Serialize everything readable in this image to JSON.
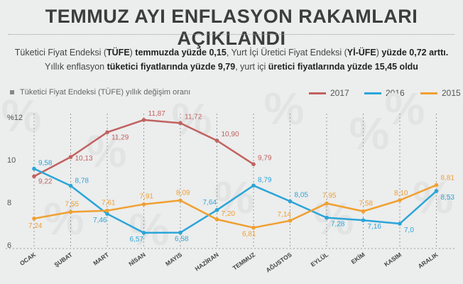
{
  "header": {
    "title": "TEMMUZ AYI ENFLASYON RAKAMLARI AÇIKLANDI"
  },
  "subtitle": {
    "line1": [
      {
        "t": "Tüketici Fiyat Endeksi (",
        "b": false
      },
      {
        "t": "TÜFE",
        "b": true
      },
      {
        "t": ") ",
        "b": false
      },
      {
        "t": "temmuzda yüzde 0,15",
        "b": true
      },
      {
        "t": ", Yurt İçi Üretici Fiyat Endeksi (",
        "b": false
      },
      {
        "t": "Yİ-ÜFE",
        "b": true
      },
      {
        "t": ") ",
        "b": false
      },
      {
        "t": "yüzde 0,72 arttı.",
        "b": true
      }
    ],
    "line2": [
      {
        "t": "Yıllık enflasyon ",
        "b": false
      },
      {
        "t": "tüketici fiyatlarında yüzde 9,79",
        "b": true
      },
      {
        "t": ", yurt içi ",
        "b": false
      },
      {
        "t": "üretici fiyatlarında yüzde 15,45 oldu",
        "b": true
      }
    ]
  },
  "chart_data": {
    "type": "line",
    "title": "Tüketici Fiyat Endeksi (TÜFE) yıllık değişim oranı",
    "y_unit": "%",
    "ylim": [
      6,
      12
    ],
    "yticks": [
      6,
      8,
      10,
      12
    ],
    "ytick_labels": [
      "6",
      "8",
      "10",
      "%12"
    ],
    "grid": "vertical-dotted",
    "legend_position": "top-right",
    "categories": [
      "OCAK",
      "ŞUBAT",
      "MART",
      "NİSAN",
      "MAYIS",
      "HAZİRAN",
      "TEMMUZ",
      "AĞUSTOS",
      "EYLÜL",
      "EKİM",
      "KASIM",
      "ARALIK"
    ],
    "series": [
      {
        "name": "2017",
        "color": "#c0625f",
        "values": [
          9.22,
          10.13,
          11.29,
          11.87,
          11.72,
          10.9,
          9.79,
          null,
          null,
          null,
          null,
          null
        ],
        "labels": [
          "9,22",
          "10,13",
          "11,29",
          "11,87",
          "11,72",
          "10,90",
          "9,79",
          null,
          null,
          null,
          null,
          null
        ]
      },
      {
        "name": "2016",
        "color": "#2aa5d8",
        "values": [
          9.58,
          8.78,
          7.46,
          6.57,
          6.58,
          7.64,
          8.79,
          8.05,
          7.28,
          7.16,
          7.0,
          8.53
        ],
        "labels": [
          "9,58",
          "8,78",
          "7,46",
          "6,57",
          "6,58",
          "7,64",
          "8,79",
          "8,05",
          "7,28",
          "7,16",
          "7,0",
          "8,53"
        ]
      },
      {
        "name": "2015",
        "color": "#f0a030",
        "values": [
          7.24,
          7.55,
          7.61,
          7.91,
          8.09,
          7.2,
          6.81,
          7.14,
          7.95,
          7.58,
          8.1,
          8.81
        ],
        "labels": [
          "7,24",
          "7,55",
          "7,61",
          "7,91",
          "8,09",
          "7,20",
          "6,81",
          "7,14",
          "7,95",
          "7,58",
          "8,10",
          "8,81"
        ]
      }
    ]
  },
  "decoration": {
    "icon_name": "percent-icon",
    "glyph": "%"
  }
}
